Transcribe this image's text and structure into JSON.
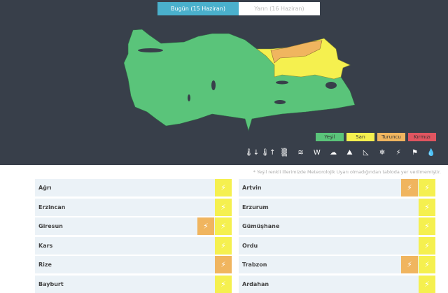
{
  "tabs": [
    {
      "label": "Bugün (15 Haziran)",
      "active": true
    },
    {
      "label": "Yarın (16 Haziran)",
      "active": false
    }
  ],
  "legend": [
    {
      "label": "Yeşil",
      "color": "#5ac47a"
    },
    {
      "label": "Sarı",
      "color": "#f5f04f"
    },
    {
      "label": "Turuncu",
      "color": "#f0b55f"
    },
    {
      "label": "Kırmızı",
      "color": "#e05560"
    }
  ],
  "colors": {
    "green": "#5ac47a",
    "yellow": "#f5f04f",
    "orange": "#f0b55f",
    "background": "#383f4a"
  },
  "hazard_icons": [
    {
      "name": "cold-thermometer-icon",
      "glyph": "🌡↓"
    },
    {
      "name": "hot-thermometer-icon",
      "glyph": "🌡↑"
    },
    {
      "name": "fog-icon",
      "glyph": "▒"
    },
    {
      "name": "flood-icon",
      "glyph": "≋"
    },
    {
      "name": "wind-icon",
      "glyph": "W"
    },
    {
      "name": "dust-storm-icon",
      "glyph": "☁"
    },
    {
      "name": "avalanche-icon",
      "glyph": "⛰"
    },
    {
      "name": "landslide-icon",
      "glyph": "◺"
    },
    {
      "name": "snow-icon",
      "glyph": "❄"
    },
    {
      "name": "thunderstorm-icon",
      "glyph": "⚡"
    },
    {
      "name": "windsock-icon",
      "glyph": "⚑"
    },
    {
      "name": "rain-icon",
      "glyph": "💧"
    }
  ],
  "note": "* Yeşil renkli illerimizde Meteorolojik Uyarı olmadığından tabloda yer verilmemiştir.",
  "provinces_left": [
    {
      "name": "Ağrı",
      "warnings": [
        "yellow"
      ]
    },
    {
      "name": "Erzincan",
      "warnings": [
        "yellow"
      ]
    },
    {
      "name": "Giresun",
      "warnings": [
        "orange",
        "yellow"
      ]
    },
    {
      "name": "Kars",
      "warnings": [
        "yellow"
      ]
    },
    {
      "name": "Rize",
      "warnings": [
        "orange"
      ]
    },
    {
      "name": "Bayburt",
      "warnings": [
        "yellow"
      ]
    }
  ],
  "provinces_right": [
    {
      "name": "Artvin",
      "warnings": [
        "orange",
        "yellow"
      ]
    },
    {
      "name": "Erzurum",
      "warnings": [
        "yellow"
      ]
    },
    {
      "name": "Gümüşhane",
      "warnings": [
        "yellow"
      ]
    },
    {
      "name": "Ordu",
      "warnings": [
        "yellow"
      ]
    },
    {
      "name": "Trabzon",
      "warnings": [
        "orange",
        "yellow"
      ]
    },
    {
      "name": "Ardahan",
      "warnings": [
        "yellow"
      ]
    }
  ]
}
